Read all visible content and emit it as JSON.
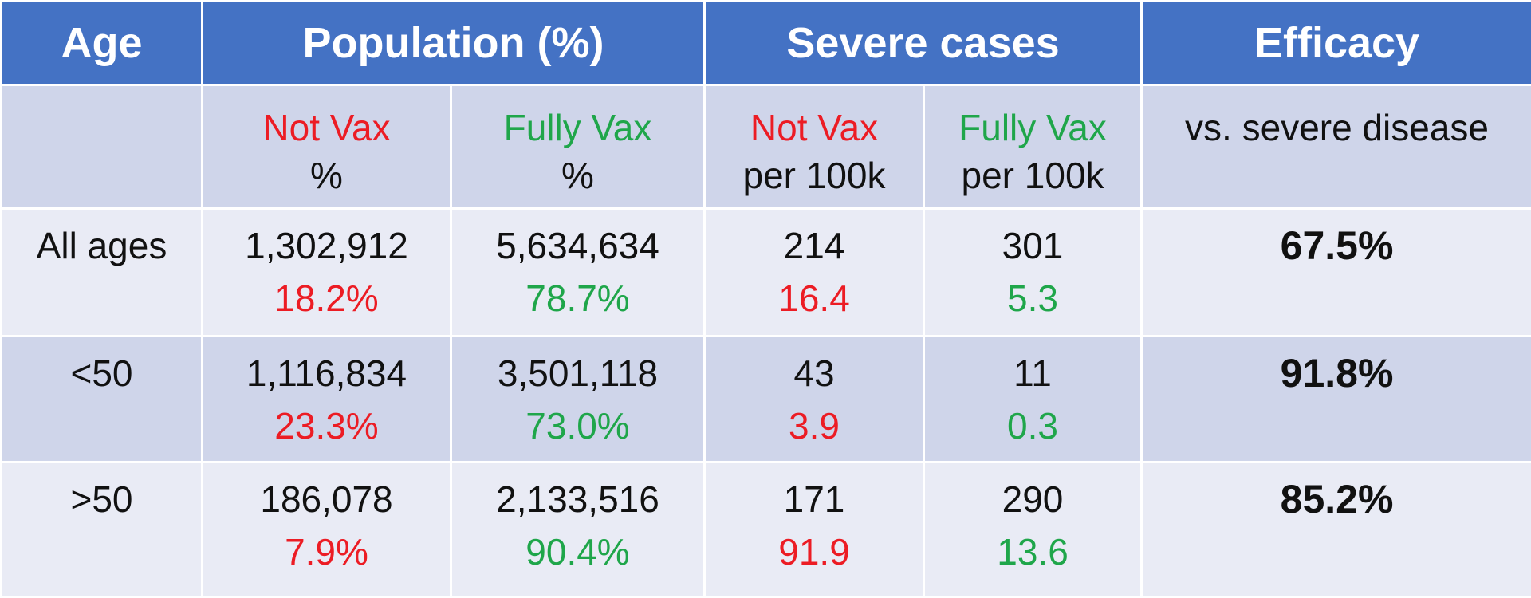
{
  "colors": {
    "header_bg": "#4472c4",
    "row_dark": "#cfd5ea",
    "row_light": "#e9ebf5",
    "not_vax": "#ec1c24",
    "fully_vax": "#1fa64a"
  },
  "header": {
    "age": "Age",
    "population": "Population (%)",
    "severe_cases": "Severe cases",
    "efficacy": "Efficacy"
  },
  "subheader": {
    "pop_not_vax": "Not Vax",
    "pop_not_vax_unit": "%",
    "pop_fully_vax": "Fully Vax",
    "pop_fully_vax_unit": "%",
    "sev_not_vax": "Not Vax",
    "sev_not_vax_unit": "per 100k",
    "sev_fully_vax": "Fully Vax",
    "sev_fully_vax_unit": "per 100k",
    "efficacy_desc": "vs. severe disease"
  },
  "rows": [
    {
      "age": "All ages",
      "pop_not_vax": "1,302,912",
      "pop_not_vax_pct": "18.2%",
      "pop_fully_vax": "5,634,634",
      "pop_fully_vax_pct": "78.7%",
      "sev_not_vax": "214",
      "sev_not_vax_rate": "16.4",
      "sev_fully_vax": "301",
      "sev_fully_vax_rate": "5.3",
      "efficacy": "67.5%"
    },
    {
      "age": "<50",
      "pop_not_vax": "1,116,834",
      "pop_not_vax_pct": "23.3%",
      "pop_fully_vax": "3,501,118",
      "pop_fully_vax_pct": "73.0%",
      "sev_not_vax": "43",
      "sev_not_vax_rate": "3.9",
      "sev_fully_vax": "11",
      "sev_fully_vax_rate": "0.3",
      "efficacy": "91.8%"
    },
    {
      "age": ">50",
      "pop_not_vax": "186,078",
      "pop_not_vax_pct": "7.9%",
      "pop_fully_vax": "2,133,516",
      "pop_fully_vax_pct": "90.4%",
      "sev_not_vax": "171",
      "sev_not_vax_rate": "91.9",
      "sev_fully_vax": "290",
      "sev_fully_vax_rate": "13.6",
      "efficacy": "85.2%"
    }
  ]
}
